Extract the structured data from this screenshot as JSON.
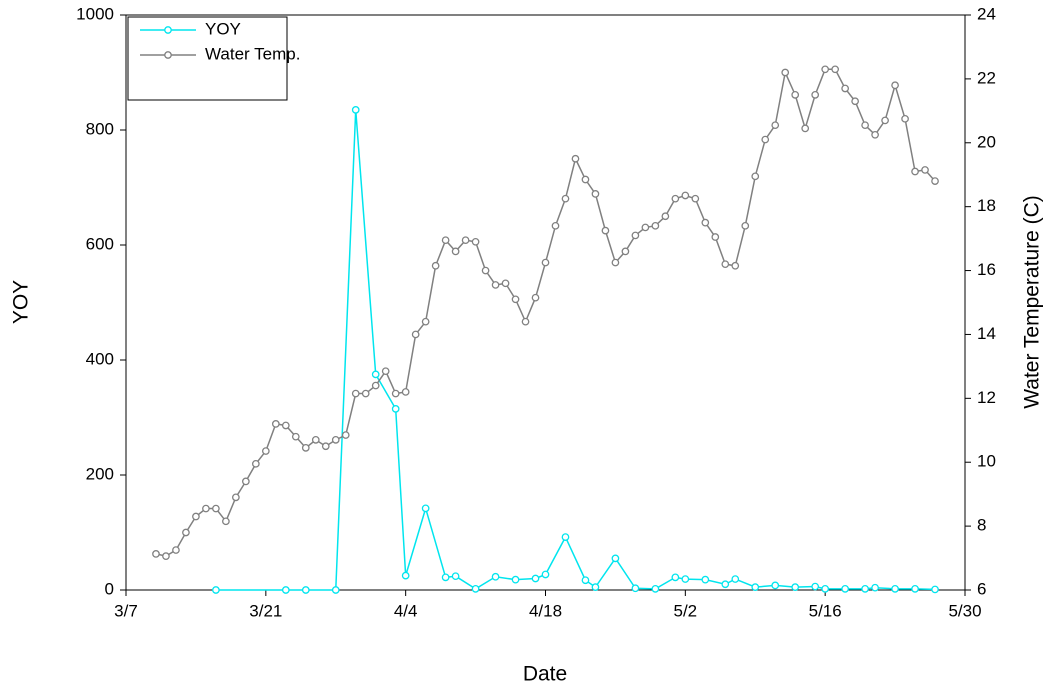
{
  "chart_data": {
    "type": "line",
    "x_label": "Date",
    "y_label": "YOY",
    "y2_label": "Water Temperature (C)",
    "xlim": [
      "3/7",
      "5/30"
    ],
    "xticks": [
      "3/7",
      "3/21",
      "4/4",
      "4/18",
      "5/2",
      "5/16",
      "5/30"
    ],
    "ylim": [
      0,
      1000
    ],
    "yticks": [
      0,
      200,
      400,
      600,
      800,
      1000
    ],
    "y2lim": [
      6,
      24
    ],
    "y2ticks": [
      6,
      8,
      10,
      12,
      14,
      16,
      18,
      20,
      22,
      24
    ],
    "legend": "upper left",
    "grid": false,
    "series": [
      {
        "name": "YOY",
        "color": "#00e5ee",
        "axis": "y",
        "x": [
          "3/16",
          "3/23",
          "3/25",
          "3/28",
          "3/30",
          "4/1",
          "4/3",
          "4/4",
          "4/6",
          "4/8",
          "4/9",
          "4/11",
          "4/13",
          "4/15",
          "4/17",
          "4/18",
          "4/20",
          "4/22",
          "4/23",
          "4/25",
          "4/27",
          "4/29",
          "5/1",
          "5/2",
          "5/4",
          "5/6",
          "5/7",
          "5/9",
          "5/11",
          "5/13",
          "5/15",
          "5/16",
          "5/18",
          "5/20",
          "5/21",
          "5/23",
          "5/25",
          "5/27"
        ],
        "values": [
          0,
          0,
          0,
          0,
          835,
          375,
          315,
          25,
          142,
          22,
          24,
          2,
          23,
          18,
          20,
          27,
          92,
          17,
          5,
          55,
          3,
          2,
          22,
          19,
          18,
          10,
          19,
          5,
          8,
          5,
          6,
          2,
          2,
          2,
          4,
          2,
          2,
          1
        ]
      },
      {
        "name": "Water Temp.",
        "color": "#808080",
        "axis": "y2",
        "x": [
          "3/10",
          "3/11",
          "3/12",
          "3/13",
          "3/14",
          "3/15",
          "3/16",
          "3/17",
          "3/18",
          "3/19",
          "3/20",
          "3/21",
          "3/22",
          "3/23",
          "3/24",
          "3/25",
          "3/26",
          "3/27",
          "3/28",
          "3/29",
          "3/30",
          "3/31",
          "4/1",
          "4/2",
          "4/3",
          "4/4",
          "4/5",
          "4/6",
          "4/7",
          "4/8",
          "4/9",
          "4/10",
          "4/11",
          "4/12",
          "4/13",
          "4/14",
          "4/15",
          "4/16",
          "4/17",
          "4/18",
          "4/19",
          "4/20",
          "4/21",
          "4/22",
          "4/23",
          "4/24",
          "4/25",
          "4/26",
          "4/27",
          "4/28",
          "4/29",
          "4/30",
          "5/1",
          "5/2",
          "5/3",
          "5/4",
          "5/5",
          "5/6",
          "5/7",
          "5/8",
          "5/9",
          "5/10",
          "5/11",
          "5/12",
          "5/13",
          "5/14",
          "5/15",
          "5/16",
          "5/17",
          "5/18",
          "5/19",
          "5/20",
          "5/21",
          "5/22",
          "5/23",
          "5/24",
          "5/25",
          "5/26",
          "5/27"
        ],
        "values": [
          7.13,
          7.06,
          7.25,
          7.8,
          8.3,
          8.55,
          8.55,
          8.15,
          8.9,
          9.4,
          9.95,
          10.35,
          11.2,
          11.15,
          10.8,
          10.45,
          10.7,
          10.5,
          10.7,
          10.85,
          12.15,
          12.15,
          12.4,
          12.85,
          12.15,
          12.2,
          14.0,
          14.4,
          16.15,
          16.95,
          16.6,
          16.95,
          16.9,
          16.0,
          15.55,
          15.6,
          15.1,
          14.4,
          15.15,
          16.25,
          17.4,
          18.25,
          19.5,
          18.85,
          18.4,
          17.25,
          16.25,
          16.6,
          17.1,
          17.35,
          17.4,
          17.7,
          18.25,
          18.35,
          18.25,
          17.5,
          17.05,
          16.2,
          16.15,
          17.4,
          18.95,
          20.1,
          20.55,
          22.2,
          21.5,
          20.45,
          21.5,
          22.3,
          22.3,
          21.7,
          21.3,
          20.55,
          20.25,
          20.7,
          21.8,
          20.75,
          19.1,
          19.15,
          18.8
        ]
      }
    ]
  }
}
